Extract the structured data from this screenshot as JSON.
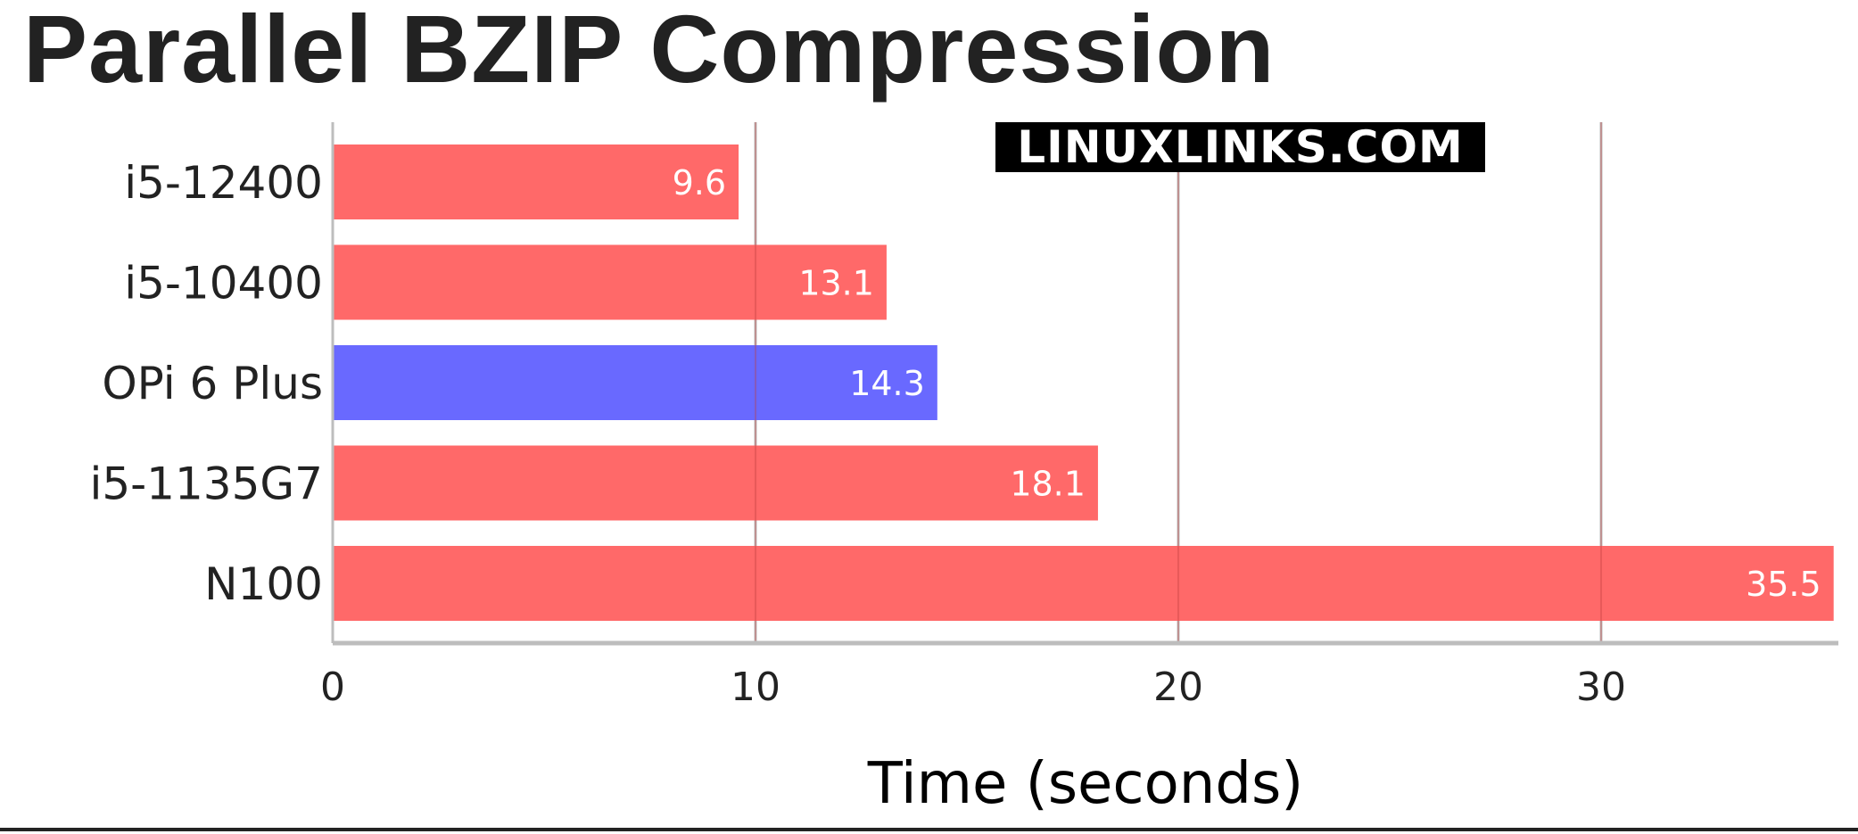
{
  "chart_data": {
    "type": "bar",
    "orientation": "horizontal",
    "title": "Parallel BZIP Compression",
    "xlabel": "Time (seconds)",
    "ylabel": "",
    "categories": [
      "i5-12400",
      "i5-10400",
      "OPi 6 Plus",
      "i5-1135G7",
      "N100"
    ],
    "values": [
      9.6,
      13.1,
      14.3,
      18.1,
      35.5
    ],
    "data_labels": [
      "9.6",
      "13.1",
      "14.3",
      "18.1",
      "35.5"
    ],
    "bar_colors": [
      "#ff6666",
      "#ff6666",
      "#6666ff",
      "#ff6666",
      "#ff6666"
    ],
    "xlim": [
      0,
      35.5
    ],
    "xticks": [
      0,
      10,
      20,
      30
    ],
    "xtick_labels": [
      "0",
      "10",
      "20",
      "30"
    ],
    "grid": "vertical",
    "legend": "none"
  },
  "watermark": "LINUXLINKS.COM"
}
